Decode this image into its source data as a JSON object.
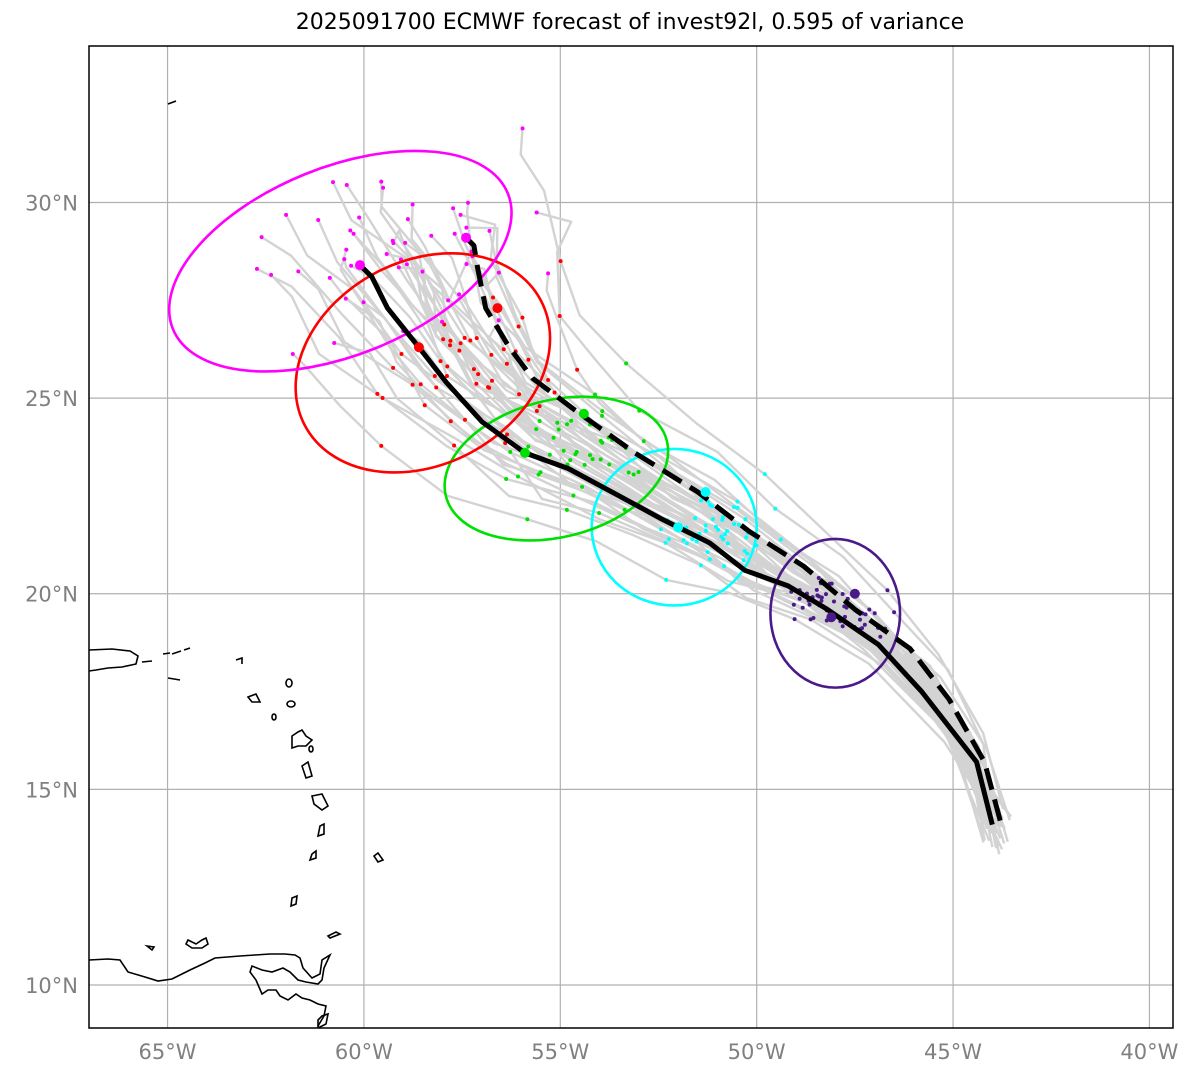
{
  "title": "2025091700 ECMWF forecast of invest92l, 0.595 of variance",
  "map": {
    "lon_range": [
      -67,
      -39.4
    ],
    "lat_range": [
      8.9,
      34
    ],
    "grid": true,
    "lon_ticks": [
      {
        "value": -65,
        "label": "65°W"
      },
      {
        "value": -60,
        "label": "60°W"
      },
      {
        "value": -55,
        "label": "55°W"
      },
      {
        "value": -50,
        "label": "50°W"
      },
      {
        "value": -45,
        "label": "45°W"
      },
      {
        "value": -40,
        "label": "40°W"
      }
    ],
    "lat_ticks": [
      {
        "value": 30,
        "label": "30°N"
      },
      {
        "value": 25,
        "label": "25°N"
      },
      {
        "value": 20,
        "label": "20°N"
      },
      {
        "value": 15,
        "label": "15°N"
      },
      {
        "value": 10,
        "label": "10°N"
      }
    ]
  },
  "colors": {
    "ensemble": "#d3d3d3",
    "mean_track": "#000000",
    "grid": "#b0b0b0",
    "tick_text": "#808080",
    "coast": "#000000",
    "clusters": [
      "#4b1a8a",
      "#00ffff",
      "#00e000",
      "#ff0000",
      "#ff00ff"
    ]
  },
  "chart_data": {
    "type": "map",
    "mean_track_solid": [
      [
        -44,
        14.1
      ],
      [
        -44.4,
        15.7
      ],
      [
        -45.8,
        17.5
      ],
      [
        -46.9,
        18.7
      ],
      [
        -48.2,
        19.6
      ],
      [
        -49.2,
        20.2
      ],
      [
        -50.3,
        20.6
      ],
      [
        -51.2,
        21.3
      ],
      [
        -52.4,
        21.9
      ],
      [
        -53.5,
        22.5
      ],
      [
        -54.8,
        23.2
      ],
      [
        -55.9,
        23.6
      ],
      [
        -57,
        24.4
      ],
      [
        -57.9,
        25.4
      ],
      [
        -58.6,
        26.3
      ],
      [
        -59.4,
        27.3
      ],
      [
        -59.8,
        28.1
      ],
      [
        -60.1,
        28.4
      ]
    ],
    "mean_track_dashed": [
      [
        -43.8,
        14.2
      ],
      [
        -44.2,
        15.7
      ],
      [
        -45.1,
        17.3
      ],
      [
        -46.1,
        18.6
      ],
      [
        -47.5,
        19.6
      ],
      [
        -48.8,
        20.7
      ],
      [
        -50.2,
        21.6
      ],
      [
        -51.5,
        22.6
      ],
      [
        -53.1,
        23.6
      ],
      [
        -54.5,
        24.6
      ],
      [
        -55.7,
        25.5
      ],
      [
        -56.3,
        26.3
      ],
      [
        -56.9,
        27.3
      ],
      [
        -57.1,
        28.3
      ],
      [
        -57.2,
        28.9
      ],
      [
        -57.4,
        29.1
      ]
    ],
    "clusters": [
      {
        "center": [
          -48,
          19.5
        ],
        "semi_axes": [
          1.65,
          1.9
        ],
        "angle": 0,
        "solid_marker": [
          -48.1,
          19.4
        ],
        "dashed_marker": [
          -47.5,
          20
        ]
      },
      {
        "center": [
          -52.1,
          21.7
        ],
        "semi_axes": [
          2.1,
          2
        ],
        "angle": 0,
        "solid_marker": [
          -52,
          21.7
        ],
        "dashed_marker": [
          -51.3,
          22.6
        ]
      },
      {
        "center": [
          -55.1,
          23.2
        ],
        "semi_axes": [
          2.9,
          1.75
        ],
        "angle": 14,
        "solid_marker": [
          -55.9,
          23.6
        ],
        "dashed_marker": [
          -54.4,
          24.6
        ]
      },
      {
        "center": [
          -58.5,
          25.9
        ],
        "semi_axes": [
          3.4,
          2.6
        ],
        "angle": 28,
        "solid_marker": [
          -58.6,
          26.3
        ],
        "dashed_marker": [
          -56.6,
          27.3
        ]
      },
      {
        "center": [
          -60.6,
          28.5
        ],
        "semi_axes": [
          4.6,
          2.4
        ],
        "angle": 22,
        "solid_marker": [
          -60.1,
          28.4
        ],
        "dashed_marker": [
          -57.4,
          29.1
        ]
      }
    ]
  }
}
